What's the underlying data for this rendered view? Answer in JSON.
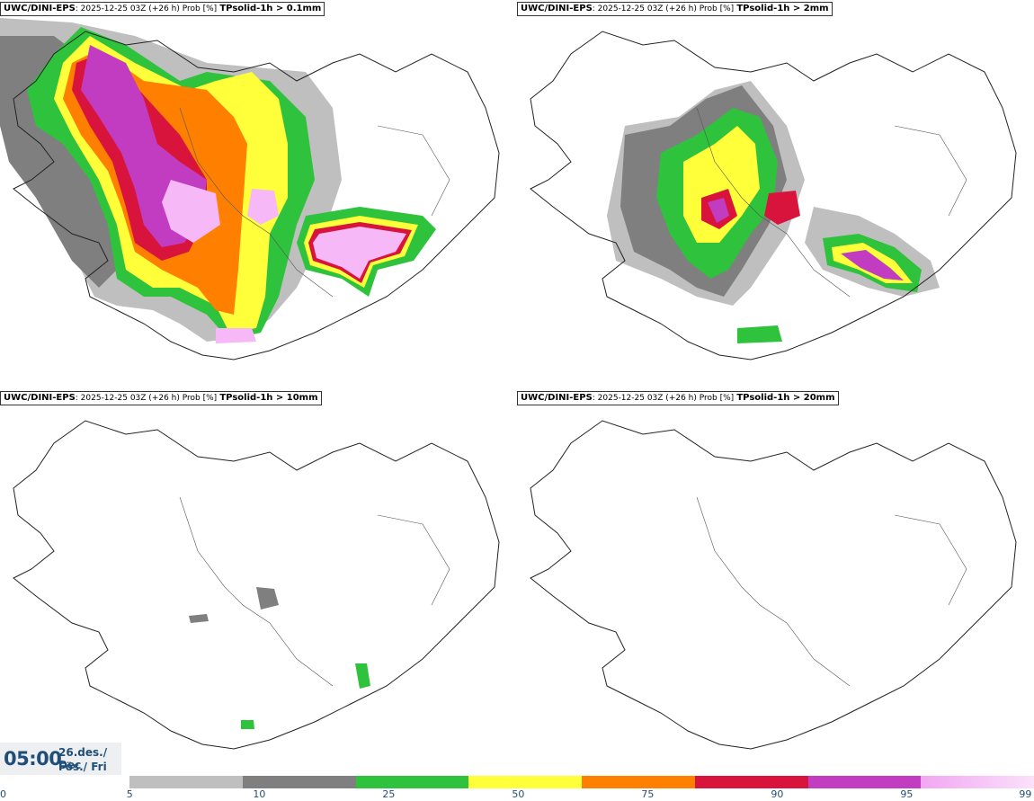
{
  "panels": [
    {
      "model": "UWC/DINI-EPS",
      "meta": ": 2025-12-25 03Z (+26 h) Prob [%]",
      "field": "TPsolid-1h > 0.1mm"
    },
    {
      "model": "UWC/DINI-EPS",
      "meta": ": 2025-12-25 03Z (+26 h) Prob [%]",
      "field": "TPsolid-1h > 2mm"
    },
    {
      "model": "UWC/DINI-EPS",
      "meta": ": 2025-12-25 03Z (+26 h) Prob [%]",
      "field": "TPsolid-1h > 10mm"
    },
    {
      "model": "UWC/DINI-EPS",
      "meta": ": 2025-12-25 03Z (+26 h) Prob [%]",
      "field": "TPsolid-1h > 20mm"
    }
  ],
  "time": {
    "clock": "05:00",
    "date_line1": "26.des./ Dec",
    "date_line2": "Fös./ Fri"
  },
  "legend": {
    "ticks": [
      "0",
      "5",
      "10",
      "25",
      "50",
      "75",
      "90",
      "95",
      "99"
    ],
    "colors": [
      "#bfbfbf",
      "#7f7f7f",
      "#2fc23c",
      "#ffff3a",
      "#ff7f00",
      "#d9143c",
      "#c23cc2",
      "#f7b8f7"
    ]
  }
}
